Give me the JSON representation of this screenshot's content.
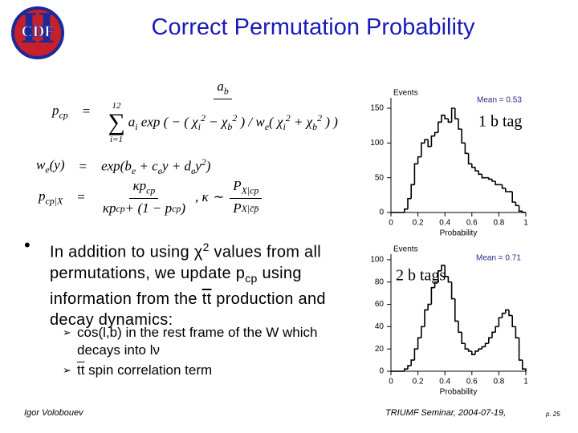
{
  "logo": {
    "text": "CDF",
    "numeral": "II"
  },
  "title": "Correct Permutation Probability",
  "equations": [
    {
      "lhs": [
        {
          "t": "p"
        },
        {
          "sub": "cp"
        }
      ],
      "rel": "=",
      "num": [
        {
          "t": "a"
        },
        {
          "sub": "b"
        }
      ],
      "sum": {
        "symbol": "∑",
        "upper": "12",
        "lower": "i=1"
      },
      "den": [
        {
          "t": "a"
        },
        {
          "sub": "i"
        },
        {
          "t": " exp ( − ( χ"
        },
        {
          "sub": "i"
        },
        {
          "sup": "2"
        },
        {
          "t": " − χ"
        },
        {
          "sub": "b"
        },
        {
          "sup": "2"
        },
        {
          "t": " ) / w"
        },
        {
          "sub": "e"
        },
        {
          "t": "( χ"
        },
        {
          "sub": "i"
        },
        {
          "sup": "2"
        },
        {
          "t": " + χ"
        },
        {
          "sub": "b"
        },
        {
          "sup": "2"
        },
        {
          "t": " ) )"
        }
      ]
    },
    {
      "lhs": [
        {
          "t": "w"
        },
        {
          "sub": "e"
        },
        {
          "t": "(y)"
        }
      ],
      "rel": "=",
      "rhs": [
        {
          "t": "exp(b"
        },
        {
          "sub": "e"
        },
        {
          "t": " + c"
        },
        {
          "sub": "e"
        },
        {
          "t": "y + d"
        },
        {
          "sub": "e"
        },
        {
          "t": "y"
        },
        {
          "sup": "2"
        },
        {
          "t": ")"
        }
      ]
    },
    {
      "lhs": [
        {
          "t": "p"
        },
        {
          "sub": "cp|X"
        }
      ],
      "rel": "=",
      "num": [
        {
          "t": "κp"
        },
        {
          "sub": "cp"
        }
      ],
      "den": [
        {
          "t": "κp"
        },
        {
          "sub": "cp"
        },
        {
          "t": " + (1 − p"
        },
        {
          "sub": "cp"
        },
        {
          "t": ")"
        }
      ],
      "rhs2": [
        {
          "t": ",    κ ∼"
        }
      ],
      "num2": [
        {
          "t": "P"
        },
        {
          "sub": "X|cp"
        }
      ],
      "den2": [
        {
          "t": "P"
        },
        {
          "sub": "X|c̄p̄"
        }
      ]
    }
  ],
  "bullet": [
    {
      "t": "In addition to using "
    },
    {
      "t": "χ"
    },
    {
      "sup": "2"
    },
    {
      "t": " values from all permutations, we update p"
    },
    {
      "sub": "cp"
    },
    {
      "t": " using information from the "
    },
    {
      "over": "tt"
    },
    {
      "t": " production and decay dynamics:"
    }
  ],
  "sub_bullets": [
    [
      {
        "t": "cos(l,b) in the rest frame of the W which decays into lν"
      }
    ],
    [
      {
        "over": "tt"
      },
      {
        "t": " spin correlation term"
      }
    ]
  ],
  "footer": {
    "author": "Igor Volobouev",
    "event": "TRIUMF Seminar, 2004-07-19,",
    "page": "p. 25"
  },
  "chart_data": [
    {
      "type": "histogram",
      "y_label": "Events",
      "x_label": "Probability",
      "annotation": "Mean = 0.53",
      "label": "1 b tag",
      "color": "#000000",
      "bins": [
        0,
        0.025,
        0.05,
        0.075,
        0.1,
        0.125,
        0.15,
        0.175,
        0.2,
        0.225,
        0.25,
        0.275,
        0.3,
        0.325,
        0.35,
        0.375,
        0.4,
        0.425,
        0.45,
        0.475,
        0.5,
        0.525,
        0.55,
        0.575,
        0.6,
        0.625,
        0.65,
        0.675,
        0.7,
        0.725,
        0.75,
        0.775,
        0.8,
        0.825,
        0.85,
        0.875,
        0.9,
        0.925,
        0.95,
        0.975,
        1
      ],
      "values": [
        0,
        0,
        0,
        0,
        5,
        20,
        40,
        70,
        80,
        100,
        105,
        95,
        110,
        115,
        130,
        140,
        135,
        130,
        150,
        135,
        120,
        100,
        85,
        70,
        65,
        60,
        55,
        50,
        50,
        48,
        45,
        40,
        40,
        35,
        30,
        30,
        15,
        10,
        2,
        0
      ],
      "xlim": [
        0,
        1
      ],
      "xticks": [
        0,
        0.2,
        0.4,
        0.6,
        0.8,
        1
      ],
      "ylim": [
        0,
        165
      ],
      "yticks": [
        0,
        50,
        100,
        150
      ]
    },
    {
      "type": "histogram",
      "y_label": "Events",
      "x_label": "Probability",
      "annotation": "Mean = 0.71",
      "label": "2 b tags",
      "color": "#000000",
      "bins": [
        0,
        0.025,
        0.05,
        0.075,
        0.1,
        0.125,
        0.15,
        0.175,
        0.2,
        0.225,
        0.25,
        0.275,
        0.3,
        0.325,
        0.35,
        0.375,
        0.4,
        0.425,
        0.45,
        0.475,
        0.5,
        0.525,
        0.55,
        0.575,
        0.6,
        0.625,
        0.65,
        0.675,
        0.7,
        0.725,
        0.75,
        0.775,
        0.8,
        0.825,
        0.85,
        0.875,
        0.9,
        0.925,
        0.95,
        0.975,
        1
      ],
      "values": [
        0,
        0,
        0,
        0,
        2,
        5,
        10,
        20,
        30,
        40,
        55,
        60,
        75,
        80,
        90,
        95,
        85,
        80,
        65,
        45,
        35,
        25,
        20,
        18,
        15,
        18,
        20,
        22,
        25,
        30,
        35,
        40,
        48,
        52,
        55,
        50,
        40,
        30,
        10,
        2
      ],
      "xlim": [
        0,
        1
      ],
      "xticks": [
        0,
        0.2,
        0.4,
        0.6,
        0.8,
        1
      ],
      "ylim": [
        0,
        105
      ],
      "yticks": [
        0,
        20,
        40,
        60,
        80,
        100
      ]
    }
  ]
}
